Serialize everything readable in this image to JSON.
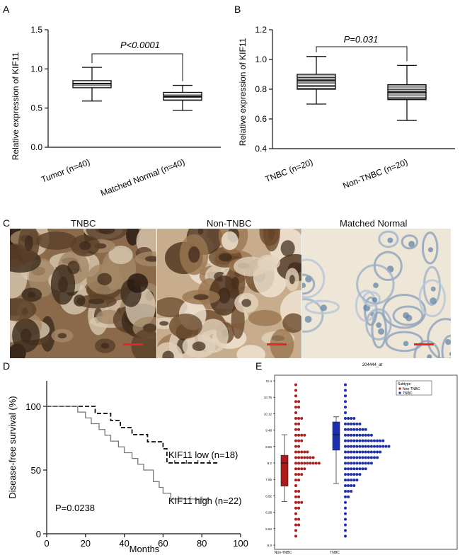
{
  "panels": {
    "a": {
      "letter": "A",
      "ylabel": "Relative expression of KIF11",
      "yticks": [
        0.0,
        0.5,
        1.0,
        1.5
      ],
      "ylim": [
        0,
        1.5
      ],
      "pvalue": "P<0.0001",
      "groups": [
        {
          "label": "Tumor (n=40)",
          "min": 0.59,
          "q1": 0.76,
          "median": 0.81,
          "q3": 0.85,
          "max": 1.02
        },
        {
          "label": "Matched Normal (n=40)",
          "min": 0.47,
          "q1": 0.6,
          "median": 0.65,
          "q3": 0.7,
          "max": 0.79
        }
      ]
    },
    "b": {
      "letter": "B",
      "ylabel": "Relative expression of KIF11",
      "yticks": [
        0.4,
        0.6,
        0.8,
        1.0,
        1.2
      ],
      "ylim": [
        0.4,
        1.2
      ],
      "pvalue": "P=0.031",
      "groups": [
        {
          "label": "TNBC (n=20)",
          "min": 0.7,
          "q1": 0.8,
          "median": 0.86,
          "q3": 0.9,
          "max": 1.02
        },
        {
          "label": "Non-TNBC (n=20)",
          "min": 0.59,
          "q1": 0.73,
          "median": 0.78,
          "q3": 0.83,
          "max": 0.96
        }
      ]
    },
    "c": {
      "letter": "C",
      "images": [
        {
          "label": "TNBC",
          "tone": "#8a6a4a"
        },
        {
          "label": "Non-TNBC",
          "tone": "#b79a78"
        },
        {
          "label": "Matched Normal",
          "tone": "#c9d4df"
        }
      ]
    },
    "d": {
      "letter": "D",
      "ylabel": "Disease-free survival (%)",
      "xlabel": "Months",
      "xticks": [
        0,
        20,
        40,
        60,
        80,
        100
      ],
      "yticks": [
        0,
        50,
        100
      ],
      "pvalue": "P=0.0238",
      "series": [
        {
          "name": "KIF11 low (n=18)",
          "style": "dashed",
          "steps": [
            [
              0,
              100
            ],
            [
              22,
              100
            ],
            [
              25,
              94.4
            ],
            [
              30,
              94.4
            ],
            [
              33,
              88.9
            ],
            [
              38,
              83.3
            ],
            [
              44,
              77.8
            ],
            [
              52,
              72.2
            ],
            [
              60,
              66.7
            ],
            [
              62,
              55.6
            ],
            [
              88,
              55.6
            ]
          ]
        },
        {
          "name": "KIF11 high (n=22)",
          "style": "solid",
          "steps": [
            [
              0,
              100
            ],
            [
              13,
              100
            ],
            [
              16,
              95.5
            ],
            [
              20,
              90.9
            ],
            [
              23,
              86.4
            ],
            [
              27,
              81.8
            ],
            [
              30,
              77.3
            ],
            [
              33,
              72.7
            ],
            [
              37,
              68.2
            ],
            [
              40,
              63.6
            ],
            [
              44,
              59.1
            ],
            [
              47,
              54.5
            ],
            [
              50,
              50.0
            ],
            [
              55,
              40.9
            ],
            [
              58,
              36.4
            ],
            [
              60,
              31.8
            ],
            [
              64,
              27.3
            ],
            [
              84,
              27.3
            ]
          ]
        }
      ]
    },
    "e": {
      "letter": "E",
      "title": "204444_at",
      "yticks": [
        "11.4",
        "10.76",
        "10.12",
        "9.48",
        "8.84",
        "8.2",
        "7.56",
        "6.92",
        "6.28",
        "5.64",
        "5.0"
      ],
      "legend_title": "Subtype",
      "categories": [
        "Non-TNBC",
        "TNBC"
      ],
      "colors": {
        "nontnbc": "#b01c1c",
        "tnbc": "#1c2fb0"
      },
      "boxes": [
        {
          "category": "Non-TNBC",
          "min": 6.7,
          "q1": 7.3,
          "median": 8.2,
          "q3": 8.5,
          "max": 9.3
        },
        {
          "category": "TNBC",
          "min": 7.4,
          "q1": 8.7,
          "median": 9.3,
          "q3": 9.8,
          "max": 10.0
        }
      ],
      "dot_counts_nontnbc": [
        1,
        1,
        1,
        2,
        2,
        1,
        3,
        2,
        2,
        4,
        3,
        2,
        5,
        7,
        9,
        4,
        3,
        2,
        1,
        2,
        2,
        3,
        2,
        1,
        2,
        2,
        1,
        1
      ],
      "dot_counts_tnbc": [
        1,
        1,
        1,
        1,
        1,
        1,
        4,
        6,
        8,
        10,
        14,
        16,
        13,
        12,
        10,
        8,
        6,
        5,
        4,
        3,
        2,
        1,
        1,
        1,
        1,
        1,
        1,
        1
      ]
    }
  }
}
